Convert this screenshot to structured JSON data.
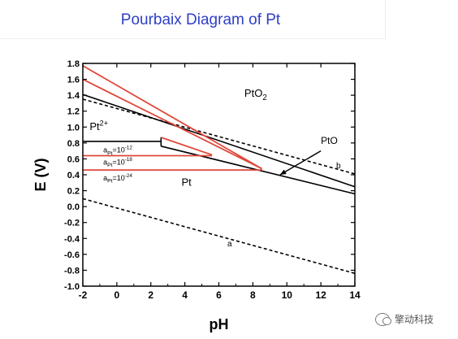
{
  "title": "Pourbaix Diagram of Pt",
  "watermark": "擎动科技",
  "colors": {
    "title": "#2e3ec6",
    "red": "#e0483a",
    "black": "#000000"
  },
  "chart_data": {
    "type": "line",
    "title": "Pourbaix Diagram of Pt",
    "xlabel": "pH",
    "ylabel": "E (V)",
    "xlim": [
      -2,
      14
    ],
    "ylim": [
      -1.0,
      1.8
    ],
    "xticks": [
      -2,
      0,
      2,
      4,
      6,
      8,
      10,
      12,
      14
    ],
    "yticks": [
      -1.0,
      -0.8,
      -0.6,
      -0.4,
      -0.2,
      0.0,
      0.2,
      0.4,
      0.6,
      0.8,
      1.0,
      1.2,
      1.4,
      1.6,
      1.8
    ],
    "grid": false,
    "series": [
      {
        "style": "dashed",
        "color": "#000000",
        "label": "a",
        "x": [
          -2,
          14
        ],
        "y": [
          0.1,
          -0.84
        ]
      },
      {
        "style": "dashed",
        "color": "#000000",
        "label": "b",
        "x": [
          -2,
          14
        ],
        "y": [
          1.35,
          0.41
        ]
      },
      {
        "style": "solid",
        "color": "#000000",
        "x": [
          -2,
          14
        ],
        "y": [
          1.41,
          0.25
        ]
      },
      {
        "style": "solid",
        "color": "#000000",
        "x": [
          2.6,
          14
        ],
        "y": [
          0.76,
          0.16
        ]
      },
      {
        "style": "solid",
        "color": "#000000",
        "x": [
          -2,
          2.6
        ],
        "y": [
          0.82,
          0.82
        ]
      },
      {
        "style": "solid",
        "color": "#000000",
        "x": [
          2.6,
          2.6
        ],
        "y": [
          0.76,
          0.87
        ]
      },
      {
        "style": "solid",
        "color": "#e0483a",
        "x": [
          -2,
          8.5,
          -2
        ],
        "y": [
          1.77,
          0.48,
          1.6
        ]
      },
      {
        "style": "solid",
        "color": "#e0483a",
        "x": [
          -2,
          5.6
        ],
        "y": [
          0.64,
          0.64
        ]
      },
      {
        "style": "solid",
        "color": "#e0483a",
        "x": [
          2.6,
          5.6
        ],
        "y": [
          0.87,
          0.65
        ]
      },
      {
        "style": "solid",
        "color": "#e0483a",
        "x": [
          -2,
          8.5
        ],
        "y": [
          0.46,
          0.46
        ]
      },
      {
        "style": "solid",
        "color": "#e0483a",
        "x": [
          8.5,
          8.5
        ],
        "y": [
          0.46,
          0.49
        ]
      }
    ],
    "annotations": [
      {
        "text": "PtO",
        "sub": "2",
        "x": 7.5,
        "y": 1.38,
        "size": 13
      },
      {
        "text": "Pt",
        "sup": "2+",
        "x": -1.6,
        "y": 0.96,
        "size": 13
      },
      {
        "text": "PtO",
        "x": 12.0,
        "y": 0.79,
        "size": 12
      },
      {
        "text": "Pt",
        "x": 3.8,
        "y": 0.26,
        "size": 13
      },
      {
        "text": "a",
        "sub": "Pt",
        "tail": "=10",
        "sup": "-12",
        "x": -0.8,
        "y": 0.68,
        "size": 9
      },
      {
        "text": "a",
        "sub": "Pt",
        "tail": "=10",
        "sup": "-18",
        "x": -0.8,
        "y": 0.53,
        "size": 9
      },
      {
        "text": "a",
        "sub": "Pt",
        "tail": "=10",
        "sup": "-24",
        "x": -0.8,
        "y": 0.33,
        "size": 9
      },
      {
        "text": "b",
        "x": 12.9,
        "y": 0.48,
        "size": 10
      },
      {
        "text": "a",
        "x": 6.5,
        "y": -0.5,
        "size": 10
      }
    ],
    "arrow": {
      "from": [
        12.0,
        0.7
      ],
      "to": [
        9.6,
        0.4
      ]
    }
  }
}
